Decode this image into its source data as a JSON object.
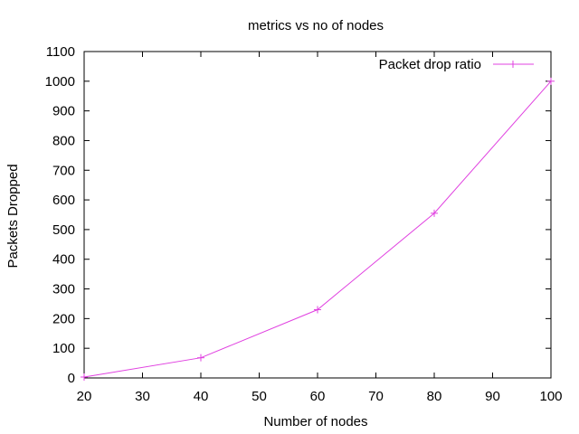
{
  "chart_data": {
    "type": "line",
    "title": "metrics vs no of nodes",
    "xlabel": "Number of nodes",
    "ylabel": "Packets Dropped",
    "xlim": [
      20,
      100
    ],
    "ylim": [
      0,
      1100
    ],
    "xticks": [
      20,
      30,
      40,
      50,
      60,
      70,
      80,
      90,
      100
    ],
    "yticks": [
      0,
      100,
      200,
      300,
      400,
      500,
      600,
      700,
      800,
      900,
      1000,
      1100
    ],
    "grid": false,
    "legend_position": "top-right",
    "series": [
      {
        "name": "Packet drop ratio",
        "color": "#e040e0",
        "marker": "plus",
        "x": [
          20,
          40,
          60,
          80,
          100
        ],
        "y": [
          3,
          68,
          230,
          555,
          1000
        ]
      }
    ]
  }
}
